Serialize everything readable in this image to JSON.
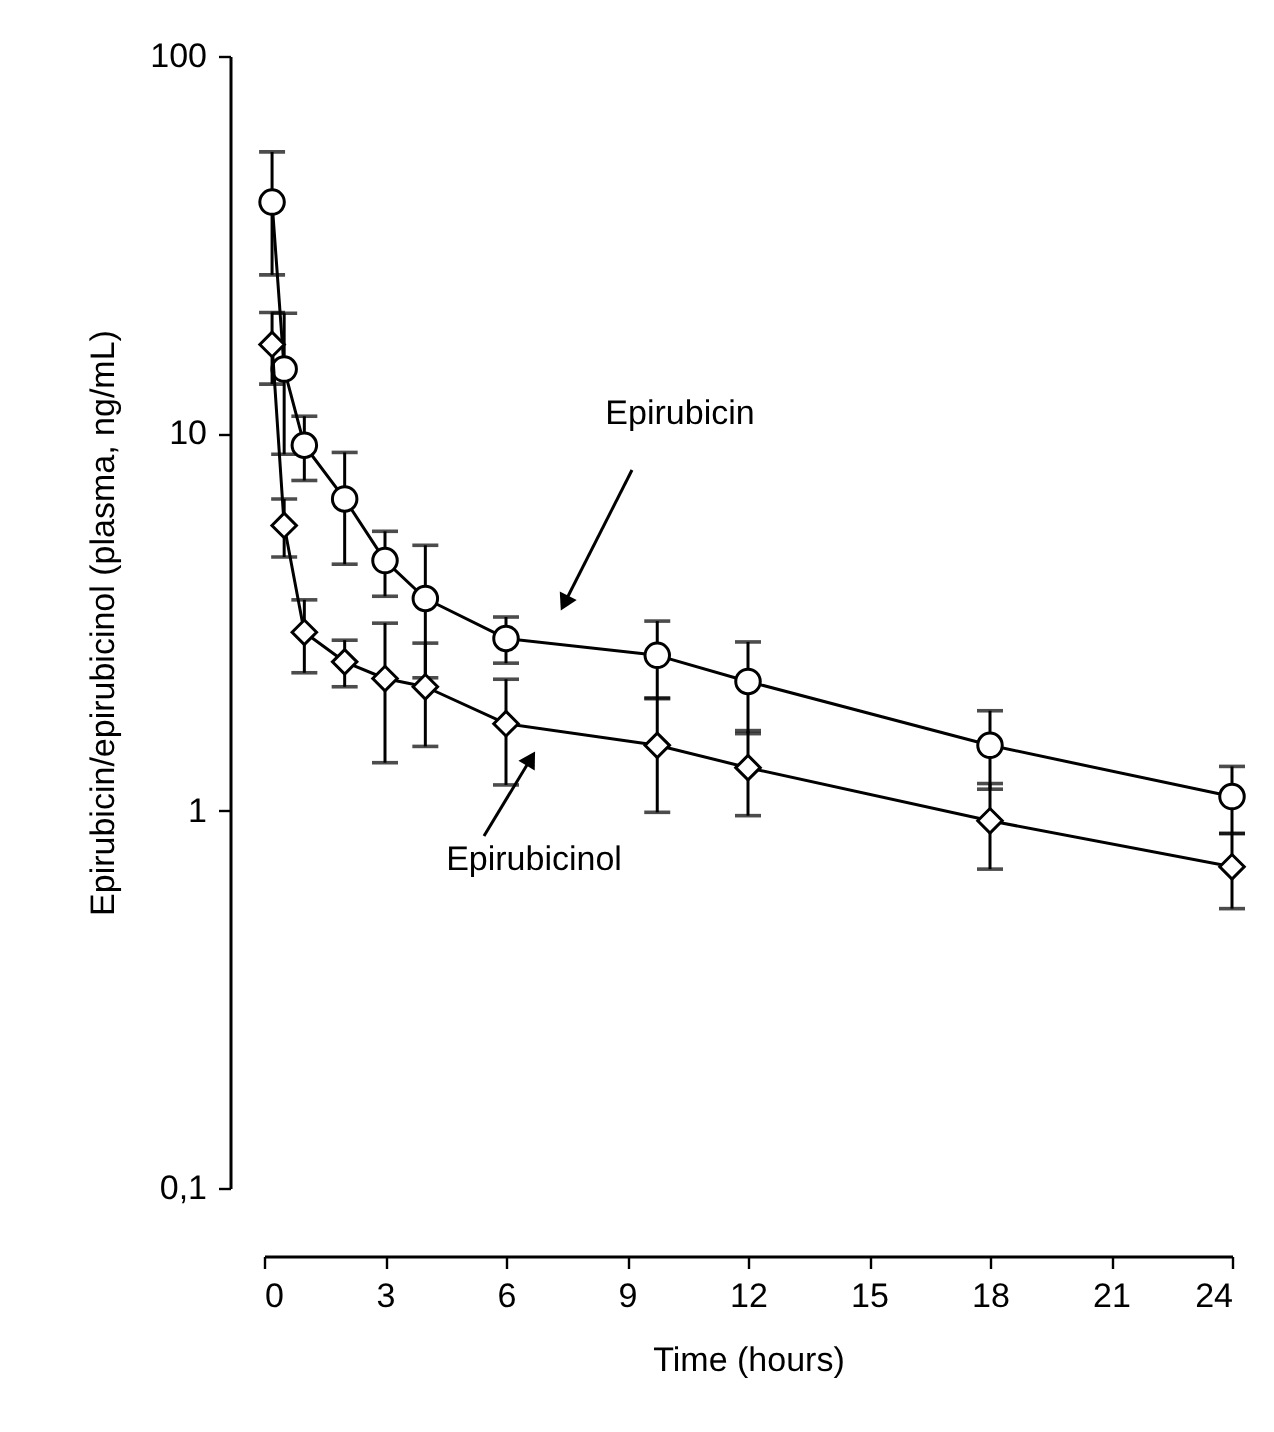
{
  "chart_data": {
    "type": "line",
    "xlabel": "Time (hours)",
    "ylabel": "Epirubicin/epirubicinol (plasma, ng/mL)",
    "log": "y",
    "grid": false,
    "line_style": "solid",
    "xlim": [
      0,
      24
    ],
    "ylim": [
      0.1,
      100
    ],
    "xticks": [
      0,
      3,
      6,
      9,
      12,
      15,
      18,
      21,
      24
    ],
    "yticks": [
      {
        "value": 0.1,
        "label": "0,1"
      },
      1,
      10,
      100
    ],
    "x": [
      0.2,
      0.5,
      1,
      2,
      3,
      4,
      6,
      9.75,
      12,
      18,
      24
    ],
    "series": [
      {
        "color": "#000000",
        "marker": "circle",
        "values": [
          41,
          14.8,
          9.3,
          6.7,
          4.6,
          3.65,
          2.86,
          2.58,
          2.2,
          1.49,
          1.09
        ],
        "errors": [
          14.7,
          6,
          1.8,
          2.2,
          0.9,
          1.4,
          0.4,
          0.6,
          0.6,
          0.35,
          0.22
        ]
      },
      {
        "color": "#000000",
        "marker": "diamond",
        "values": [
          17.2,
          5.7,
          2.97,
          2.48,
          2.24,
          2.13,
          1.7,
          1.49,
          1.3,
          0.94,
          0.71
        ],
        "errors": [
          3.7,
          1,
          0.65,
          0.35,
          0.9,
          0.65,
          0.53,
          0.5,
          0.33,
          0.24,
          0.16
        ]
      }
    ],
    "annotations": [
      "Epirubicin",
      "Epirubicinol"
    ]
  }
}
